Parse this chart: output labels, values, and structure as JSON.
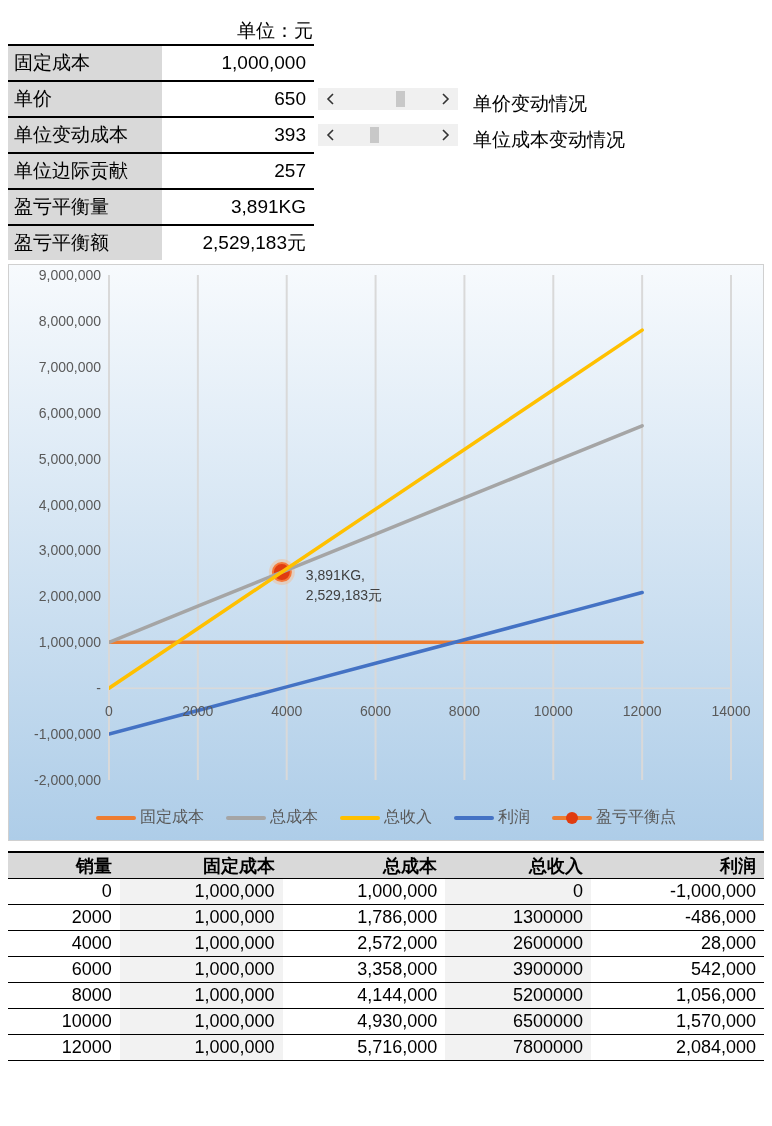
{
  "chart_data": {
    "type": "line",
    "xlabel": "销量",
    "annotations": [
      "单位：元",
      "固定成本",
      "1,000,000",
      "单价",
      "650",
      "单位变动成本",
      "393",
      "单位边际贡献",
      "257",
      "盈亏平衡量",
      "3,891KG",
      "盈亏平衡额",
      "2,529,183元",
      "单价变动情况",
      "单位成本变动情况",
      "0",
      "1,000,000",
      "1,000,000",
      "0",
      "-1,000,000",
      "2000",
      "1,000,000",
      "1,786,000",
      "1300000",
      "-486,000",
      "4000",
      "1,000,000",
      "2,572,000",
      "2600000",
      "28,000",
      "6000",
      "1,000,000",
      "3,358,000",
      "3900000",
      "542,000",
      "8000",
      "1,000,000",
      "4,144,000",
      "5200000",
      "1,056,000",
      "10000",
      "1,000,000",
      "4,930,000",
      "6500000",
      "1,570,000",
      "12000",
      "1,000,000",
      "5,716,000",
      "7800000",
      "2,084,000"
    ],
    "x": [
      0,
      2000,
      4000,
      6000,
      8000,
      10000,
      12000
    ],
    "series": [
      {
        "name": "固定成本",
        "color": "#ed7d31",
        "values": [
          1000000,
          1000000,
          1000000,
          1000000,
          1000000,
          1000000,
          1000000
        ]
      },
      {
        "name": "总成本",
        "color": "#a5a5a5",
        "values": [
          1000000,
          1786000,
          2572000,
          3358000,
          4144000,
          4930000,
          5716000
        ]
      },
      {
        "name": "总收入",
        "color": "#ffc000",
        "values": [
          0,
          1300000,
          2600000,
          3900000,
          5200000,
          6500000,
          7800000
        ]
      },
      {
        "name": "利润",
        "color": "#4472c4",
        "values": [
          -1000000,
          -486000,
          28000,
          542000,
          1056000,
          1570000,
          2084000
        ]
      },
      {
        "name": "盈亏平衡点",
        "type": "scatter",
        "marker": "circle",
        "color": "#e03c10",
        "x": [
          3891
        ],
        "values": [
          2529183
        ],
        "value_labels": [
          "3,891KG,\n2,529,183元"
        ]
      }
    ],
    "xlim": [
      0,
      14000
    ],
    "xticks": [
      0,
      2000,
      4000,
      6000,
      8000,
      10000,
      12000,
      14000
    ],
    "ylim": [
      -2000000,
      9000000
    ],
    "yticks": [
      {
        "value": -2000000,
        "label": "-2,000,000"
      },
      {
        "value": -1000000,
        "label": "-1,000,000"
      },
      {
        "value": 0,
        "label": "-"
      },
      {
        "value": 1000000,
        "label": "1,000,000"
      },
      {
        "value": 2000000,
        "label": "2,000,000"
      },
      {
        "value": 3000000,
        "label": "3,000,000"
      },
      {
        "value": 4000000,
        "label": "4,000,000"
      },
      {
        "value": 5000000,
        "label": "5,000,000"
      },
      {
        "value": 6000000,
        "label": "6,000,000"
      },
      {
        "value": 7000000,
        "label": "7,000,000"
      },
      {
        "value": 8000000,
        "label": "8,000,000"
      },
      {
        "value": 9000000,
        "label": "9,000,000"
      }
    ],
    "grid": "x",
    "legend": "bottom"
  }
}
